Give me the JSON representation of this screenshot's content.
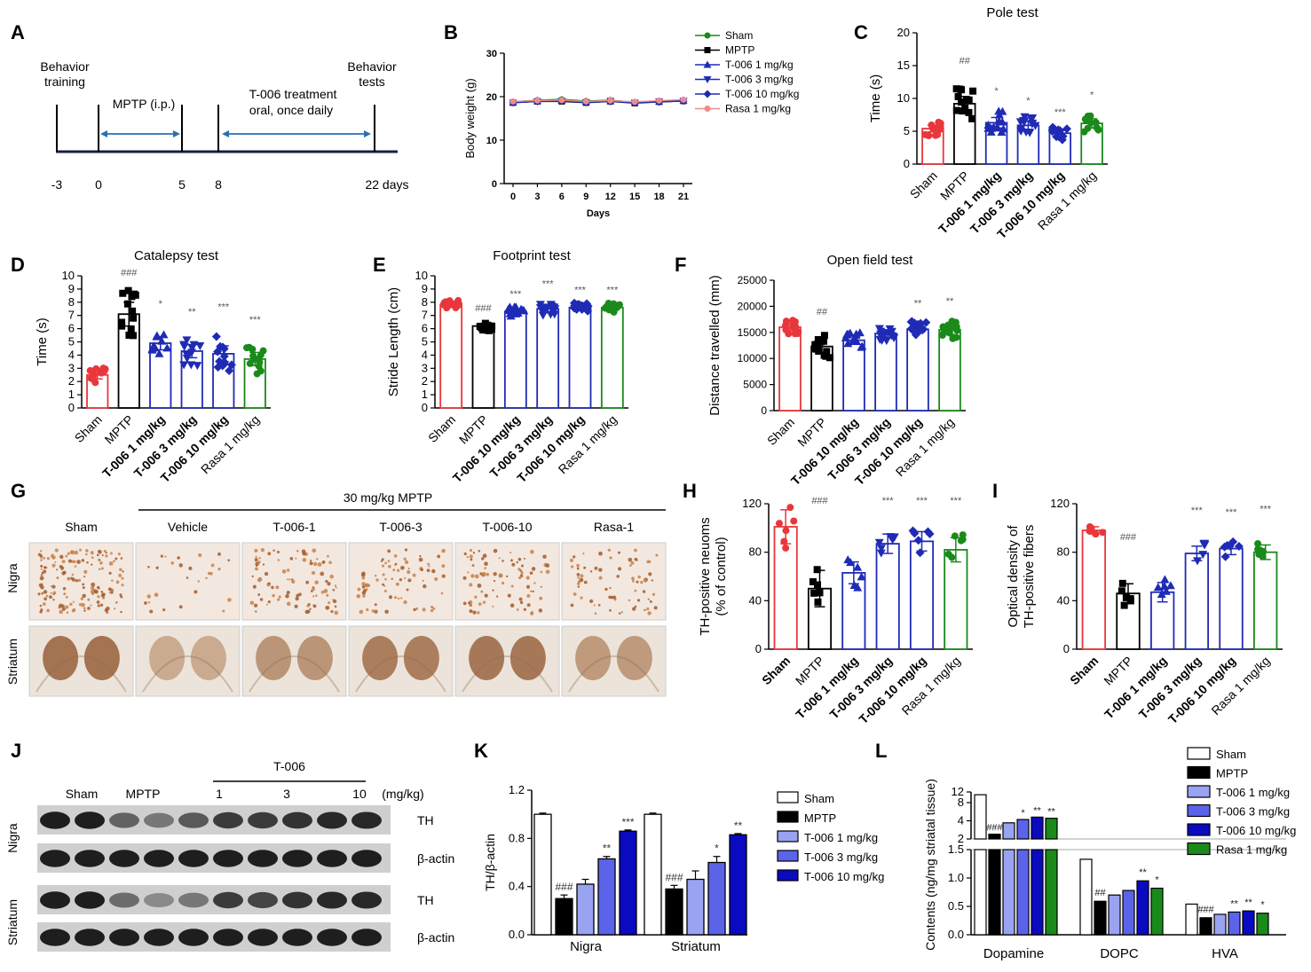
{
  "panels": {
    "A": {
      "letter": "A",
      "label_training": [
        "Behavior",
        "training"
      ],
      "label_tests": [
        "Behavior",
        "tests"
      ],
      "mptp_label": "MPTP (i.p.)",
      "treat_label": [
        "T-006 treatment",
        "oral, once daily"
      ],
      "ticks": [
        "-3",
        "0",
        "5",
        "8",
        "22 days"
      ]
    },
    "B": {
      "letter": "B"
    },
    "C": {
      "letter": "C"
    },
    "D": {
      "letter": "D"
    },
    "E": {
      "letter": "E"
    },
    "F": {
      "letter": "F"
    },
    "G": {
      "letter": "G",
      "top_label": "30 mg/kg MPTP",
      "columns": [
        "Sham",
        "Vehicle",
        "T-006-1",
        "T-006-3",
        "T-006-10",
        "Rasa-1"
      ],
      "rows": [
        "Nigra",
        "Striatum"
      ]
    },
    "H": {
      "letter": "H"
    },
    "I": {
      "letter": "I"
    },
    "J": {
      "letter": "J",
      "group_label": "T-006",
      "lanes": [
        "Sham",
        "MPTP",
        "1",
        "3",
        "10",
        "(mg/kg)"
      ],
      "rows": [
        "Nigra",
        "Striatum"
      ],
      "bands": [
        "TH",
        "β-actin",
        "TH",
        "β-actin"
      ]
    },
    "K": {
      "letter": "K"
    },
    "L": {
      "letter": "L"
    }
  },
  "colors": {
    "sham": "#e8373b",
    "mptp": "#000000",
    "t1": "#1f2bb5",
    "t3": "#1f2bb5",
    "t10": "#1f2bb5",
    "rasa": "#1a8a1a",
    "k_t1": "#9aa3f2",
    "k_t3": "#5b63e8",
    "k_t10": "#0a0ac0",
    "rasa_k": "#1a8a1a"
  },
  "chart_data": [
    {
      "id": "B",
      "type": "line",
      "xlabel": "Days",
      "ylabel": "Body weight (g)",
      "x": [
        0,
        3,
        6,
        9,
        12,
        15,
        18,
        21
      ],
      "ylim": [
        0,
        30
      ],
      "yticks": [
        0,
        10,
        20,
        30
      ],
      "series": [
        {
          "name": "Sham",
          "values": [
            18.8,
            19.2,
            19.4,
            19.0,
            19.2,
            18.7,
            19.0,
            19.2
          ]
        },
        {
          "name": "MPTP",
          "values": [
            18.6,
            18.9,
            18.9,
            18.6,
            18.9,
            18.5,
            18.8,
            19.0
          ]
        },
        {
          "name": "T-006 1 mg/kg",
          "values": [
            18.7,
            19.0,
            19.1,
            18.8,
            19.0,
            18.7,
            18.9,
            19.1
          ]
        },
        {
          "name": "T-006 3 mg/kg",
          "values": [
            18.6,
            18.9,
            19.0,
            18.7,
            19.0,
            18.6,
            18.9,
            19.0
          ]
        },
        {
          "name": "T-006 10 mg/kg",
          "values": [
            18.7,
            18.9,
            19.0,
            18.7,
            18.9,
            18.6,
            18.8,
            19.0
          ]
        },
        {
          "name": "Rasa 1 mg/kg",
          "values": [
            18.9,
            19.1,
            19.2,
            18.9,
            19.1,
            18.8,
            19.1,
            19.3
          ]
        }
      ]
    },
    {
      "id": "C",
      "type": "bar",
      "title": "Pole test",
      "ylabel": "Time (s)",
      "ylim": [
        0,
        20
      ],
      "yticks": [
        0,
        5,
        10,
        15,
        20
      ],
      "categories": [
        "Sham",
        "MPTP",
        "T-006 1 mg/kg",
        "T-006 3 mg/kg",
        "T-006 10 mg/kg",
        "Rasa 1 mg/kg"
      ],
      "values": [
        5.4,
        9.2,
        6.3,
        5.9,
        4.7,
        6.2
      ],
      "errors": [
        0.5,
        1.1,
        0.8,
        0.6,
        0.5,
        0.7
      ],
      "significance": [
        "",
        "##",
        "*",
        "*",
        "***",
        "*"
      ]
    },
    {
      "id": "D",
      "type": "bar",
      "title": "Catalepsy test",
      "ylabel": "Time (s)",
      "ylim": [
        0,
        10
      ],
      "yticks": [
        0,
        1,
        2,
        3,
        4,
        5,
        6,
        7,
        8,
        9,
        10
      ],
      "categories": [
        "Sham",
        "MPTP",
        "T-006 1 mg/kg",
        "T-006 3 mg/kg",
        "T-006 10 mg/kg",
        "Rasa 1 mg/kg"
      ],
      "values": [
        2.5,
        7.1,
        4.9,
        4.3,
        4.1,
        3.7
      ],
      "errors": [
        0.3,
        0.9,
        0.5,
        0.5,
        0.6,
        0.5
      ],
      "significance": [
        "",
        "###",
        "*",
        "**",
        "***",
        "***"
      ]
    },
    {
      "id": "E",
      "type": "bar",
      "title": "Footprint test",
      "ylabel": "Stride Length (cm)",
      "ylim": [
        0,
        10
      ],
      "yticks": [
        0,
        1,
        2,
        3,
        4,
        5,
        6,
        7,
        8,
        9,
        10
      ],
      "categories": [
        "Sham",
        "MPTP",
        "T-006 10 mg/kg",
        "T-006 3 mg/kg",
        "T-006 10 mg/kg",
        "Rasa 1 mg/kg"
      ],
      "values": [
        7.8,
        6.2,
        7.3,
        7.5,
        7.6,
        7.6
      ],
      "errors": [
        0.2,
        0.2,
        0.2,
        0.3,
        0.2,
        0.2
      ],
      "significance": [
        "",
        "###",
        "***",
        "***",
        "***",
        "***"
      ]
    },
    {
      "id": "F",
      "type": "bar",
      "title": "Open field test",
      "ylabel": "Distance travelled  (mm)",
      "ylim": [
        0,
        25000
      ],
      "yticks": [
        0,
        5000,
        10000,
        15000,
        20000,
        25000
      ],
      "categories": [
        "Sham",
        "MPTP",
        "T-006 10 mg/kg",
        "T-006 3 mg/kg",
        "T-006 10 mg/kg",
        "Rasa 1 mg/kg"
      ],
      "values": [
        16000,
        12300,
        13500,
        14800,
        15600,
        15500
      ],
      "errors": [
        700,
        1100,
        800,
        700,
        800,
        900
      ],
      "significance": [
        "",
        "##",
        "",
        "",
        "**",
        "**"
      ]
    },
    {
      "id": "H",
      "type": "bar",
      "ylabel": "TH-positive neuoms\n(% of control)",
      "ylim": [
        0,
        120
      ],
      "yticks": [
        0,
        40,
        80,
        120
      ],
      "categories": [
        "Sham",
        "MPTP",
        "T-006 1 mg/kg",
        "T-006 3 mg/kg",
        "T-006 10 mg/kg",
        "Rasa 1 mg/kg"
      ],
      "values": [
        101,
        50,
        63,
        87,
        89,
        82
      ],
      "errors": [
        14,
        15,
        9,
        8,
        8,
        10
      ],
      "significance": [
        "",
        "###",
        "",
        "***",
        "***",
        "***"
      ]
    },
    {
      "id": "I",
      "type": "bar",
      "ylabel": "Optical density of\nTH-positive fibers",
      "ylim": [
        0,
        120
      ],
      "yticks": [
        0,
        40,
        80,
        120
      ],
      "categories": [
        "Sham",
        "MPTP",
        "T-006 1 mg/kg",
        "T-006 3 mg/kg",
        "T-006 10 mg/kg",
        "Rasa 1 mg/kg"
      ],
      "values": [
        98,
        46,
        47,
        79,
        83,
        80
      ],
      "errors": [
        3,
        8,
        8,
        6,
        5,
        6
      ],
      "significance": [
        "",
        "###",
        "",
        "***",
        "***",
        "***"
      ]
    },
    {
      "id": "K",
      "type": "bar",
      "ylabel": "TH/β-actin",
      "ylim": [
        0,
        1.2
      ],
      "yticks": [
        0.0,
        0.4,
        0.8,
        1.2
      ],
      "categories": [
        "Nigra",
        "Striatum"
      ],
      "series": [
        {
          "name": "Sham",
          "values": [
            1.0,
            1.0
          ],
          "errors": [
            0.01,
            0.01
          ],
          "sig": [
            "",
            ""
          ]
        },
        {
          "name": "MPTP",
          "values": [
            0.3,
            0.38
          ],
          "errors": [
            0.03,
            0.03
          ],
          "sig": [
            "###",
            "###"
          ]
        },
        {
          "name": "T-006 1 mg/kg",
          "values": [
            0.42,
            0.46
          ],
          "errors": [
            0.04,
            0.07
          ],
          "sig": [
            "",
            ""
          ]
        },
        {
          "name": "T-006 3 mg/kg",
          "values": [
            0.63,
            0.6
          ],
          "errors": [
            0.02,
            0.05
          ],
          "sig": [
            "**",
            "*"
          ]
        },
        {
          "name": "T-006 10 mg/kg",
          "values": [
            0.86,
            0.83
          ],
          "errors": [
            0.01,
            0.01
          ],
          "sig": [
            "***",
            "**"
          ]
        }
      ]
    },
    {
      "id": "L",
      "type": "bar",
      "ylabel": "Contents (ng/mg striatal tissue)",
      "yticks_low": [
        0.0,
        0.5,
        1.0,
        1.5
      ],
      "yticks_high": [
        2,
        4,
        8,
        12
      ],
      "categories": [
        "Dopamine",
        "DOPC",
        "HVA"
      ],
      "series": [
        {
          "name": "Sham",
          "values": [
            10.8,
            1.33,
            0.54
          ],
          "sig": [
            "",
            "",
            ""
          ]
        },
        {
          "name": "MPTP",
          "values": [
            2.4,
            0.59,
            0.3
          ],
          "sig": [
            "###",
            "##",
            "###"
          ]
        },
        {
          "name": "T-006 1 mg/kg",
          "values": [
            3.7,
            0.7,
            0.36
          ],
          "sig": [
            "",
            "",
            ""
          ]
        },
        {
          "name": "T-006 3 mg/kg",
          "values": [
            4.2,
            0.78,
            0.4
          ],
          "sig": [
            "*",
            "",
            "**"
          ]
        },
        {
          "name": "T-006 10 mg/kg",
          "values": [
            4.6,
            0.95,
            0.42
          ],
          "sig": [
            "**",
            "**",
            "**"
          ]
        },
        {
          "name": "Rasa 1 mg/kg",
          "values": [
            4.4,
            0.82,
            0.38
          ],
          "sig": [
            "**",
            "*",
            "*"
          ]
        }
      ]
    }
  ]
}
